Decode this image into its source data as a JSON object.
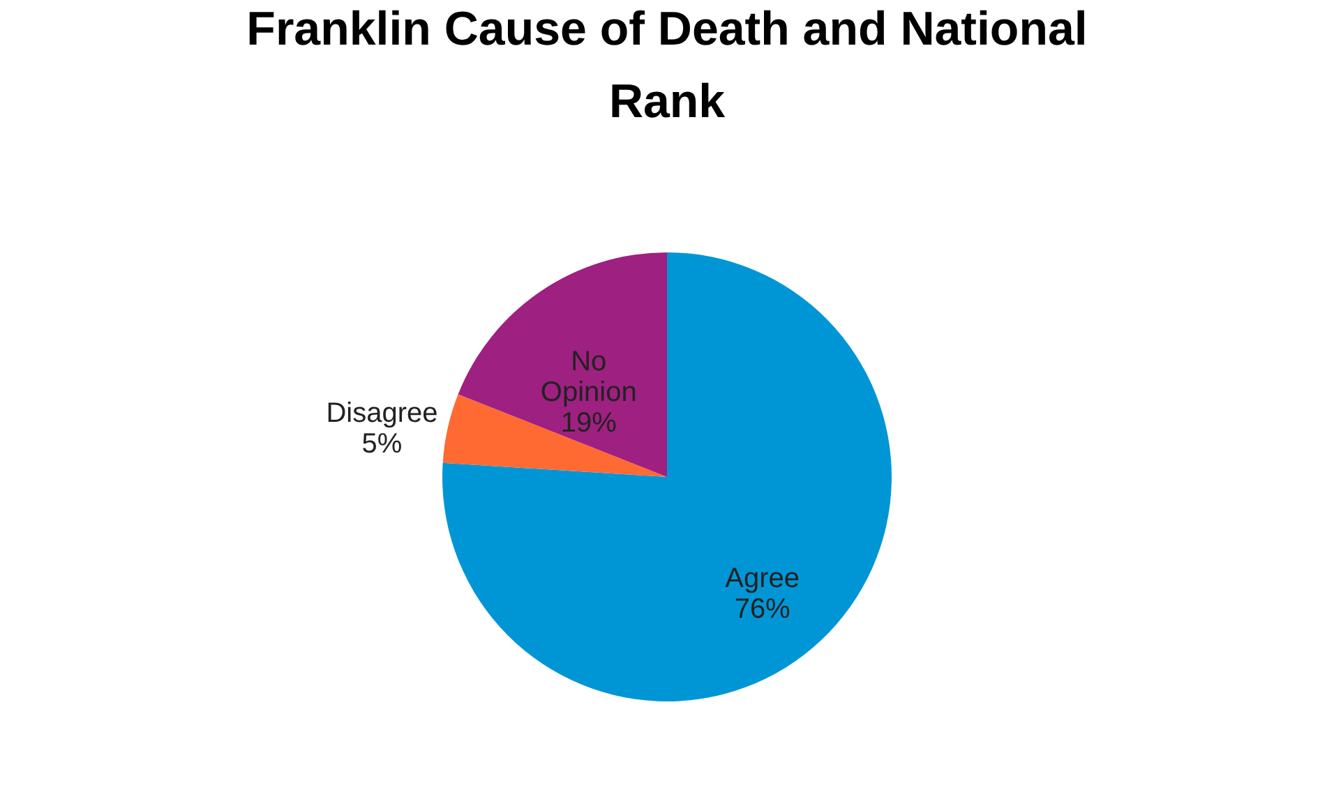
{
  "chart_data": {
    "type": "pie",
    "title": "Franklin Cause of Death and National Rank",
    "categories": [
      "Agree",
      "Disagree",
      "No Opinion"
    ],
    "values": [
      76,
      5,
      19
    ],
    "value_labels": [
      "76%",
      "5%",
      "19%"
    ],
    "colors": [
      "#0096d6",
      "#ff6a33",
      "#9e2080"
    ],
    "legend": false
  }
}
